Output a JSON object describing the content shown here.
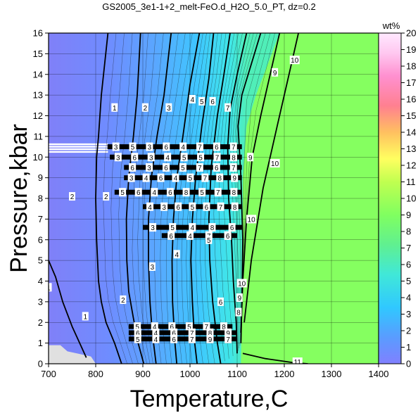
{
  "title": "GS2005_3e1-1+2_melt-FeO.d_H2O_5.0_PT, dz=0.2",
  "chart_data": {
    "type": "heatmap",
    "title": "GS2005_3e1-1+2_melt-FeO.d_H2O_5.0_PT, dz=0.2",
    "xlabel": "Temperature,C",
    "ylabel": "Pressure,kbar",
    "xlim": [
      700,
      1400
    ],
    "ylim": [
      0,
      16
    ],
    "x_ticks": [
      "700",
      "800",
      "900",
      "1000",
      "1100",
      "1200",
      "1300",
      "1400"
    ],
    "y_ticks": [
      "0",
      "1",
      "2",
      "3",
      "4",
      "5",
      "6",
      "7",
      "8",
      "9",
      "10",
      "11",
      "12",
      "13",
      "14",
      "15",
      "16"
    ],
    "grid": true,
    "colorbar": {
      "unit": "wt%",
      "range": [
        0,
        20
      ],
      "ticks": [
        "0",
        "1",
        "2",
        "3",
        "4",
        "5",
        "6",
        "7",
        "8",
        "9",
        "10",
        "11",
        "12",
        "13",
        "14",
        "15",
        "16",
        "17",
        "18",
        "19",
        "20"
      ],
      "colors": [
        "#8080ff",
        "#5a9cff",
        "#30c8ff",
        "#40e8d8",
        "#60f090",
        "#80ff60",
        "#c0ff50",
        "#ffff60",
        "#ffc060",
        "#ff8090",
        "#ff90d0",
        "#ffc8f0",
        "#ffe8ff"
      ]
    },
    "regions": [
      {
        "name": "solidus-margin",
        "color": "#e0e0e0"
      },
      {
        "name": "melt-field",
        "color": "#85ff60"
      }
    ],
    "contours": [
      {
        "level": "1",
        "points": [
          [
            826,
            16
          ],
          [
            812,
            13
          ],
          [
            806,
            11.0
          ],
          [
            802,
            10.0
          ],
          [
            800,
            8.0
          ],
          [
            802,
            6.0
          ],
          [
            806,
            4.0
          ],
          [
            812,
            3.0
          ],
          [
            822,
            2.0
          ],
          [
            840,
            1.0
          ],
          [
            855,
            0
          ]
        ]
      },
      {
        "level": "1",
        "points": [
          [
            700,
            5.0
          ],
          [
            715,
            4.2
          ],
          [
            730,
            3.0
          ],
          [
            750,
            1.8
          ],
          [
            768,
            0.9
          ],
          [
            780,
            0.3
          ]
        ]
      },
      {
        "level": "2",
        "points": [
          [
            895,
            16
          ],
          [
            888,
            13
          ],
          [
            880,
            11.0
          ],
          [
            870,
            9.0
          ],
          [
            865,
            7.0
          ],
          [
            866,
            5.0
          ],
          [
            870,
            3.5
          ],
          [
            880,
            2.2
          ],
          [
            890,
            1.0
          ],
          [
            902,
            0
          ]
        ]
      },
      {
        "level": "3",
        "points": [
          [
            960,
            16
          ],
          [
            945,
            13
          ],
          [
            930,
            11.0
          ],
          [
            918,
            9.0
          ],
          [
            912,
            7.0
          ],
          [
            912,
            5.0
          ],
          [
            915,
            3.0
          ],
          [
            920,
            1.5
          ],
          [
            928,
            0
          ]
        ]
      },
      {
        "level": "4",
        "points": [
          [
            1020,
            16
          ],
          [
            1000,
            13.5
          ],
          [
            985,
            11.0
          ],
          [
            972,
            9.0
          ],
          [
            965,
            7.0
          ],
          [
            962,
            5.0
          ],
          [
            963,
            3.0
          ],
          [
            968,
            1.0
          ],
          [
            972,
            0
          ]
        ]
      },
      {
        "level": "5",
        "points": [
          [
            1050,
            16
          ],
          [
            1040,
            13.8
          ],
          [
            1025,
            11.5
          ],
          [
            1012,
            9.0
          ],
          [
            1005,
            7.0
          ],
          [
            1002,
            5.0
          ],
          [
            1005,
            3.0
          ],
          [
            1010,
            1.0
          ],
          [
            1015,
            0
          ]
        ]
      },
      {
        "level": "6",
        "points": [
          [
            1085,
            16
          ],
          [
            1072,
            14.0
          ],
          [
            1058,
            12.0
          ],
          [
            1045,
            9.5
          ],
          [
            1040,
            7.0
          ],
          [
            1042,
            5.0
          ],
          [
            1048,
            3.0
          ],
          [
            1058,
            1.0
          ],
          [
            1065,
            0
          ]
        ]
      },
      {
        "level": "7",
        "points": [
          [
            1120,
            16
          ],
          [
            1100,
            14.0
          ],
          [
            1085,
            12.3
          ],
          [
            1080,
            10.5
          ],
          [
            1082,
            8.0
          ],
          [
            1088,
            6.0
          ],
          [
            1092,
            4.0
          ],
          [
            1098,
            2.0
          ],
          [
            1100,
            0.5
          ]
        ]
      },
      {
        "level": "8",
        "points": [
          [
            1150,
            16
          ],
          [
            1130,
            14.5
          ],
          [
            1110,
            13.0
          ],
          [
            1102,
            11.5
          ],
          [
            1108,
            9.0
          ],
          [
            1112,
            6.0
          ],
          [
            1110,
            3.0
          ],
          [
            1108,
            1.0
          ]
        ]
      },
      {
        "level": "9",
        "points": [
          [
            1190,
            16
          ],
          [
            1170,
            14.0
          ],
          [
            1150,
            12.0
          ],
          [
            1132,
            10.0
          ],
          [
            1120,
            7.0
          ],
          [
            1112,
            4.0
          ],
          [
            1108,
            1.5
          ]
        ]
      },
      {
        "level": "10",
        "points": [
          [
            1230,
            16
          ],
          [
            1210,
            14.0
          ],
          [
            1185,
            11.5
          ],
          [
            1155,
            8.5
          ],
          [
            1130,
            5.0
          ],
          [
            1115,
            2.0
          ]
        ]
      },
      {
        "level": "11",
        "points": [
          [
            1112,
            0.5
          ],
          [
            1160,
            0.25
          ],
          [
            1220,
            0.05
          ],
          [
            1250,
            0
          ]
        ]
      }
    ],
    "contour_labels": [
      {
        "text": "1",
        "x": 700,
        "y": 3.7
      },
      {
        "text": "1",
        "x": 778,
        "y": 2.3
      },
      {
        "text": "1",
        "x": 840,
        "y": 12.4
      },
      {
        "text": "2",
        "x": 750,
        "y": 8.1
      },
      {
        "text": "2",
        "x": 822,
        "y": 8.1
      },
      {
        "text": "2",
        "x": 858,
        "y": 3.1
      },
      {
        "text": "2",
        "x": 905,
        "y": 12.4
      },
      {
        "text": "3",
        "x": 920,
        "y": 4.7
      },
      {
        "text": "3",
        "x": 955,
        "y": 12.4
      },
      {
        "text": "4",
        "x": 972,
        "y": 5.3
      },
      {
        "text": "4",
        "x": 1005,
        "y": 12.8
      },
      {
        "text": "5",
        "x": 1040,
        "y": 6.0
      },
      {
        "text": "5",
        "x": 1025,
        "y": 12.7
      },
      {
        "text": "6",
        "x": 1080,
        "y": 6.2
      },
      {
        "text": "6",
        "x": 1065,
        "y": 3.0
      },
      {
        "text": "6",
        "x": 1048,
        "y": 12.7
      },
      {
        "text": "7",
        "x": 1080,
        "y": 12.4
      },
      {
        "text": "8",
        "x": 1103,
        "y": 2.5
      },
      {
        "text": "9",
        "x": 1105,
        "y": 3.2
      },
      {
        "text": "9",
        "x": 1128,
        "y": 10.0
      },
      {
        "text": "9",
        "x": 1180,
        "y": 14.1
      },
      {
        "text": "10",
        "x": 1110,
        "y": 3.9
      },
      {
        "text": "10",
        "x": 1130,
        "y": 7.0
      },
      {
        "text": "10",
        "x": 1180,
        "y": 9.7
      },
      {
        "text": "10",
        "x": 1222,
        "y": 14.7
      },
      {
        "text": "11",
        "x": 1228,
        "y": 0.1
      }
    ],
    "noisy_bands": [
      {
        "y": 10.5,
        "x0": 825,
        "x1": 1110,
        "labels": [
          "3",
          "5",
          "3",
          "6",
          "4",
          "7",
          "6",
          "7"
        ]
      },
      {
        "y": 10.0,
        "x0": 830,
        "x1": 1110,
        "labels": [
          "3",
          "6",
          "3",
          "4",
          "5",
          "5",
          "7",
          "8"
        ]
      },
      {
        "y": 9.5,
        "x0": 860,
        "x1": 1110,
        "labels": [
          "6",
          "3",
          "6",
          "5",
          "7",
          "6",
          "7"
        ]
      },
      {
        "y": 9.0,
        "x0": 860,
        "x1": 1110,
        "labels": [
          "3",
          "4",
          "6",
          "4",
          "5",
          "7",
          "8",
          "9"
        ]
      },
      {
        "y": 8.3,
        "x0": 840,
        "x1": 1110,
        "labels": [
          "5",
          "6",
          "4",
          "6",
          "8",
          "5",
          "7",
          "8"
        ]
      },
      {
        "y": 7.6,
        "x0": 900,
        "x1": 1110,
        "labels": [
          "4",
          "3",
          "6",
          "5",
          "6",
          "7",
          "8"
        ]
      },
      {
        "y": 6.6,
        "x0": 900,
        "x1": 1110,
        "labels": [
          "3",
          "5",
          "4",
          "8",
          "6"
        ]
      },
      {
        "y": 6.2,
        "x0": 940,
        "x1": 1100,
        "labels": [
          "6",
          "4",
          "7",
          "8"
        ]
      },
      {
        "y": 1.8,
        "x0": 870,
        "x1": 1090,
        "labels": [
          "5",
          "4",
          "6",
          "5",
          "7",
          "8"
        ]
      },
      {
        "y": 1.5,
        "x0": 870,
        "x1": 1100,
        "labels": [
          "6",
          "4",
          "6",
          "7",
          "8",
          "9"
        ]
      },
      {
        "y": 1.2,
        "x0": 870,
        "x1": 1100,
        "labels": [
          "5",
          "4",
          "6",
          "7",
          "9",
          "7"
        ]
      }
    ]
  }
}
